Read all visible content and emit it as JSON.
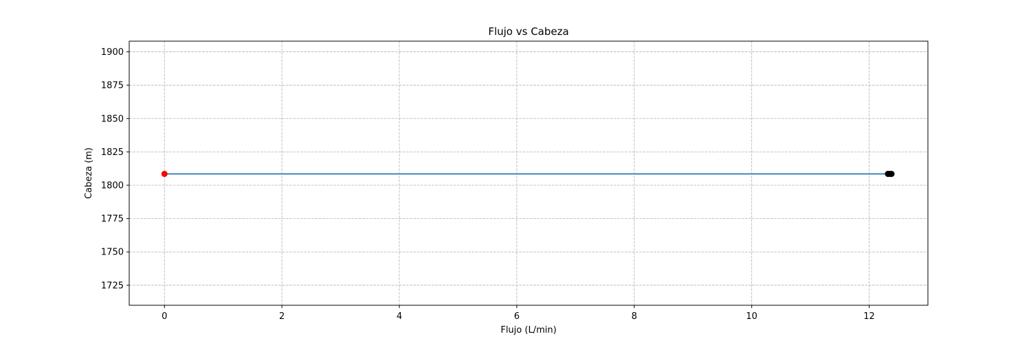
{
  "chart_data": {
    "type": "line",
    "title": "Flujo vs Cabeza",
    "xlabel": "Flujo (L/min)",
    "ylabel": "Cabeza (m)",
    "xlim": [
      -0.6,
      13.0
    ],
    "ylim": [
      1710,
      1908
    ],
    "xticks": [
      0,
      2,
      4,
      6,
      8,
      10,
      12
    ],
    "yticks": [
      1725,
      1750,
      1775,
      1800,
      1825,
      1850,
      1875,
      1900
    ],
    "grid": true,
    "grid_style": "dashed",
    "series": [
      {
        "kind": "line",
        "color": "#1f77b4",
        "x": [
          0,
          12.3
        ],
        "y": [
          1808.5,
          1808.5
        ]
      }
    ],
    "points": [
      {
        "x": 0,
        "y": 1808.5,
        "color": "#ff0000"
      },
      {
        "x": 12.32,
        "y": 1808.5,
        "color": "#000000"
      },
      {
        "x": 12.35,
        "y": 1808.5,
        "color": "#000000"
      },
      {
        "x": 12.38,
        "y": 1808.5,
        "color": "#000000"
      }
    ]
  }
}
